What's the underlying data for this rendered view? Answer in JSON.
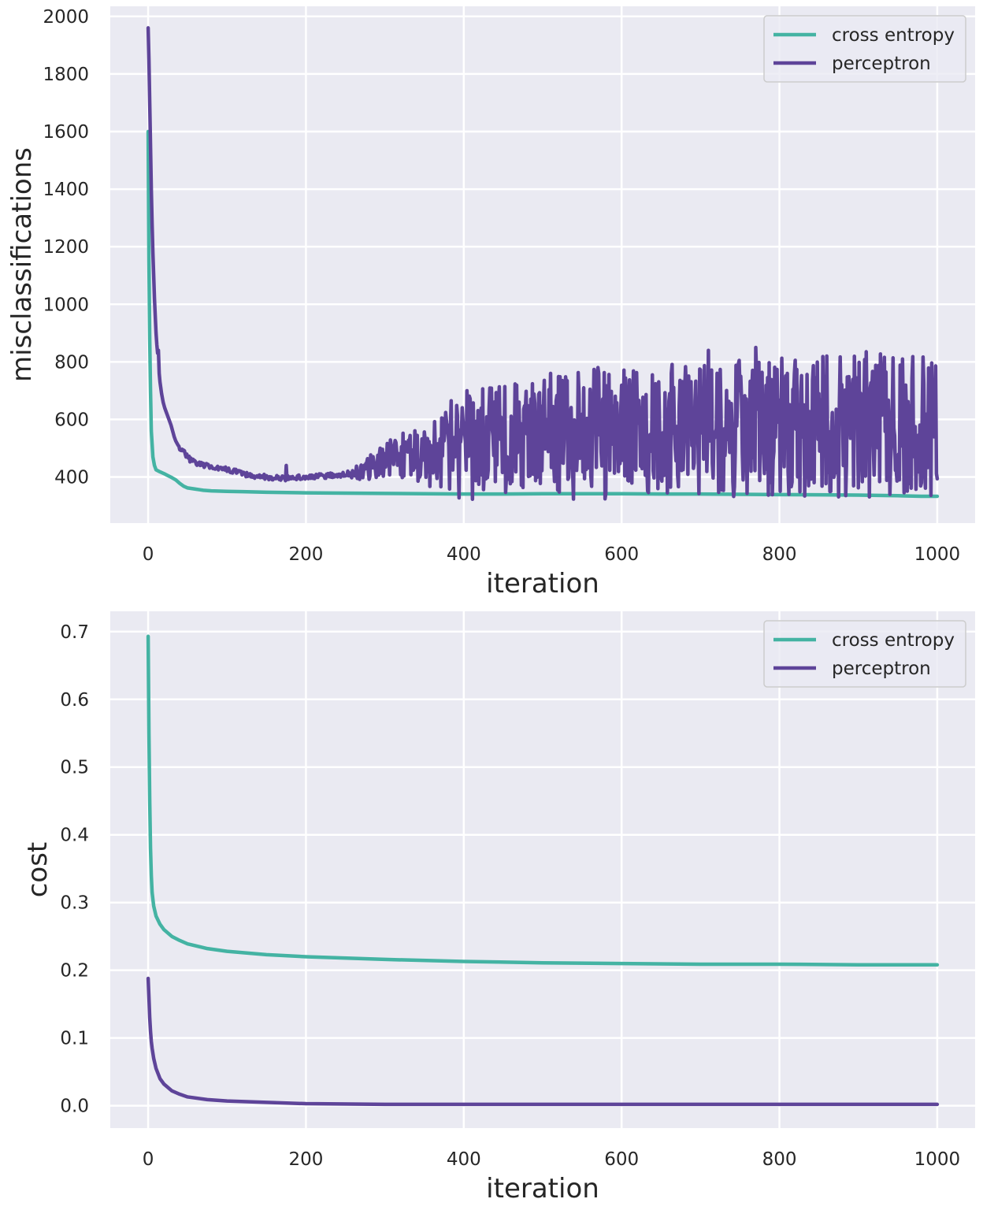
{
  "colors": {
    "background": "#eaeaf2",
    "grid": "#ffffff",
    "cross_entropy": "#44b3a3",
    "perceptron": "#5e4499",
    "text": "#262626"
  },
  "chart_data": [
    {
      "type": "line",
      "title": "",
      "xlabel": "iteration",
      "ylabel": "misclassifications",
      "xlim": [
        -48,
        1048
      ],
      "ylim": [
        240,
        2035
      ],
      "xticks": [
        0,
        200,
        400,
        600,
        800,
        1000
      ],
      "xtick_labels": [
        "0",
        "200",
        "400",
        "600",
        "800",
        "1000"
      ],
      "yticks": [
        400,
        600,
        800,
        1000,
        1200,
        1400,
        1600,
        1800,
        2000
      ],
      "ytick_labels": [
        "400",
        "600",
        "800",
        "1000",
        "1200",
        "1400",
        "1600",
        "1800",
        "2000"
      ],
      "grid": true,
      "legend": "upper right",
      "series": [
        {
          "name": "cross entropy",
          "color": "#44b3a3",
          "points": [
            [
              0,
              1600
            ],
            [
              1,
              1150
            ],
            [
              2,
              880
            ],
            [
              3,
              700
            ],
            [
              4,
              560
            ],
            [
              6,
              470
            ],
            [
              8,
              440
            ],
            [
              10,
              425
            ],
            [
              15,
              418
            ],
            [
              20,
              412
            ],
            [
              25,
              405
            ],
            [
              30,
              398
            ],
            [
              35,
              390
            ],
            [
              40,
              378
            ],
            [
              45,
              368
            ],
            [
              50,
              362
            ],
            [
              60,
              358
            ],
            [
              70,
              354
            ],
            [
              80,
              352
            ],
            [
              100,
              350
            ],
            [
              120,
              349
            ],
            [
              150,
              347
            ],
            [
              200,
              345
            ],
            [
              250,
              344
            ],
            [
              300,
              343
            ],
            [
              350,
              342
            ],
            [
              400,
              341
            ],
            [
              450,
              341
            ],
            [
              500,
              342
            ],
            [
              550,
              342
            ],
            [
              600,
              342
            ],
            [
              650,
              341
            ],
            [
              700,
              341
            ],
            [
              750,
              340
            ],
            [
              800,
              339
            ],
            [
              850,
              338
            ],
            [
              900,
              337
            ],
            [
              950,
              335
            ],
            [
              980,
              333
            ],
            [
              1000,
              333
            ]
          ]
        },
        {
          "name": "perceptron",
          "color": "#5e4499",
          "points": [
            [
              0,
              1960
            ],
            [
              1,
              1850
            ],
            [
              2,
              1700
            ],
            [
              3,
              1550
            ],
            [
              4,
              1400
            ],
            [
              5,
              1280
            ],
            [
              6,
              1180
            ],
            [
              7,
              1100
            ],
            [
              8,
              1020
            ],
            [
              9,
              960
            ],
            [
              10,
              900
            ],
            [
              11,
              860
            ],
            [
              12,
              830
            ],
            [
              13,
              840
            ],
            [
              14,
              760
            ],
            [
              15,
              730
            ],
            [
              17,
              690
            ],
            [
              19,
              660
            ],
            [
              21,
              640
            ],
            [
              23,
              625
            ],
            [
              25,
              610
            ],
            [
              27,
              595
            ],
            [
              29,
              580
            ],
            [
              31,
              560
            ],
            [
              33,
              540
            ],
            [
              35,
              525
            ],
            [
              38,
              510
            ],
            [
              41,
              500
            ],
            [
              44,
              490
            ],
            [
              47,
              480
            ],
            [
              50,
              470
            ],
            [
              55,
              455
            ],
            [
              60,
              450
            ],
            [
              65,
              445
            ],
            [
              70,
              440
            ],
            [
              80,
              435
            ],
            [
              90,
              432
            ],
            [
              100,
              428
            ],
            [
              110,
              420
            ],
            [
              120,
              412
            ],
            [
              130,
              406
            ],
            [
              140,
              402
            ],
            [
              150,
              400
            ],
            [
              160,
              398
            ],
            [
              170,
              395
            ],
            [
              180,
              396
            ],
            [
              190,
              398
            ],
            [
              200,
              400
            ],
            [
              210,
              402
            ],
            [
              220,
              404
            ],
            [
              230,
              405
            ],
            [
              240,
              406
            ],
            [
              250,
              408
            ],
            [
              260,
              412
            ],
            [
              270,
              420
            ],
            [
              280,
              432
            ],
            [
              290,
              448
            ],
            [
              300,
              462
            ],
            [
              310,
              470
            ],
            [
              320,
              475
            ],
            [
              330,
              478
            ],
            [
              340,
              480
            ],
            [
              350,
              485
            ],
            [
              360,
              490
            ],
            [
              370,
              495
            ],
            [
              380,
              500
            ],
            [
              390,
              505
            ],
            [
              400,
              510
            ],
            [
              450,
              520
            ],
            [
              500,
              535
            ],
            [
              550,
              545
            ],
            [
              600,
              555
            ],
            [
              650,
              560
            ],
            [
              700,
              565
            ],
            [
              750,
              568
            ],
            [
              800,
              572
            ],
            [
              850,
              575
            ],
            [
              900,
              578
            ],
            [
              950,
              578
            ],
            [
              1000,
              575
            ]
          ],
          "fluctuation_amplitude": [
            [
              250,
              10
            ],
            [
              300,
              60
            ],
            [
              350,
              110
            ],
            [
              400,
              190
            ],
            [
              450,
              200
            ],
            [
              500,
              210
            ],
            [
              550,
              225
            ],
            [
              600,
              230
            ],
            [
              650,
              235
            ],
            [
              700,
              240
            ],
            [
              750,
              245
            ],
            [
              800,
              248
            ],
            [
              850,
              250
            ],
            [
              900,
              252
            ],
            [
              950,
              250
            ],
            [
              1000,
              245
            ]
          ],
          "spikes": [
            [
              175,
              440
            ],
            [
              510,
              760
            ],
            [
              570,
              780
            ],
            [
              710,
              840
            ],
            [
              770,
              850
            ],
            [
              860,
              820
            ],
            [
              910,
              835
            ],
            [
              940,
              340
            ],
            [
              990,
              775
            ]
          ]
        }
      ]
    },
    {
      "type": "line",
      "title": "",
      "xlabel": "iteration",
      "ylabel": "cost",
      "xlim": [
        -48,
        1048
      ],
      "ylim": [
        -0.033,
        0.73
      ],
      "xticks": [
        0,
        200,
        400,
        600,
        800,
        1000
      ],
      "xtick_labels": [
        "0",
        "200",
        "400",
        "600",
        "800",
        "1000"
      ],
      "yticks": [
        0.0,
        0.1,
        0.2,
        0.3,
        0.4,
        0.5,
        0.6,
        0.7
      ],
      "ytick_labels": [
        "0.0",
        "0.1",
        "0.2",
        "0.3",
        "0.4",
        "0.5",
        "0.6",
        "0.7"
      ],
      "grid": true,
      "legend": "upper right",
      "series": [
        {
          "name": "cross entropy",
          "color": "#44b3a3",
          "points": [
            [
              0,
              0.693
            ],
            [
              1,
              0.55
            ],
            [
              2,
              0.45
            ],
            [
              3,
              0.38
            ],
            [
              4,
              0.34
            ],
            [
              5,
              0.315
            ],
            [
              7,
              0.295
            ],
            [
              10,
              0.28
            ],
            [
              15,
              0.268
            ],
            [
              20,
              0.26
            ],
            [
              30,
              0.25
            ],
            [
              40,
              0.244
            ],
            [
              50,
              0.239
            ],
            [
              75,
              0.232
            ],
            [
              100,
              0.228
            ],
            [
              150,
              0.223
            ],
            [
              200,
              0.22
            ],
            [
              300,
              0.216
            ],
            [
              400,
              0.213
            ],
            [
              500,
              0.211
            ],
            [
              600,
              0.21
            ],
            [
              700,
              0.209
            ],
            [
              800,
              0.209
            ],
            [
              900,
              0.208
            ],
            [
              1000,
              0.208
            ]
          ]
        },
        {
          "name": "perceptron",
          "color": "#5e4499",
          "points": [
            [
              0,
              0.188
            ],
            [
              1,
              0.16
            ],
            [
              2,
              0.13
            ],
            [
              3,
              0.11
            ],
            [
              4,
              0.095
            ],
            [
              5,
              0.085
            ],
            [
              7,
              0.07
            ],
            [
              10,
              0.055
            ],
            [
              15,
              0.04
            ],
            [
              20,
              0.032
            ],
            [
              30,
              0.022
            ],
            [
              40,
              0.017
            ],
            [
              50,
              0.013
            ],
            [
              75,
              0.009
            ],
            [
              100,
              0.007
            ],
            [
              150,
              0.005
            ],
            [
              200,
              0.003
            ],
            [
              300,
              0.002
            ],
            [
              400,
              0.002
            ],
            [
              600,
              0.002
            ],
            [
              800,
              0.002
            ],
            [
              1000,
              0.002
            ]
          ]
        }
      ]
    }
  ]
}
